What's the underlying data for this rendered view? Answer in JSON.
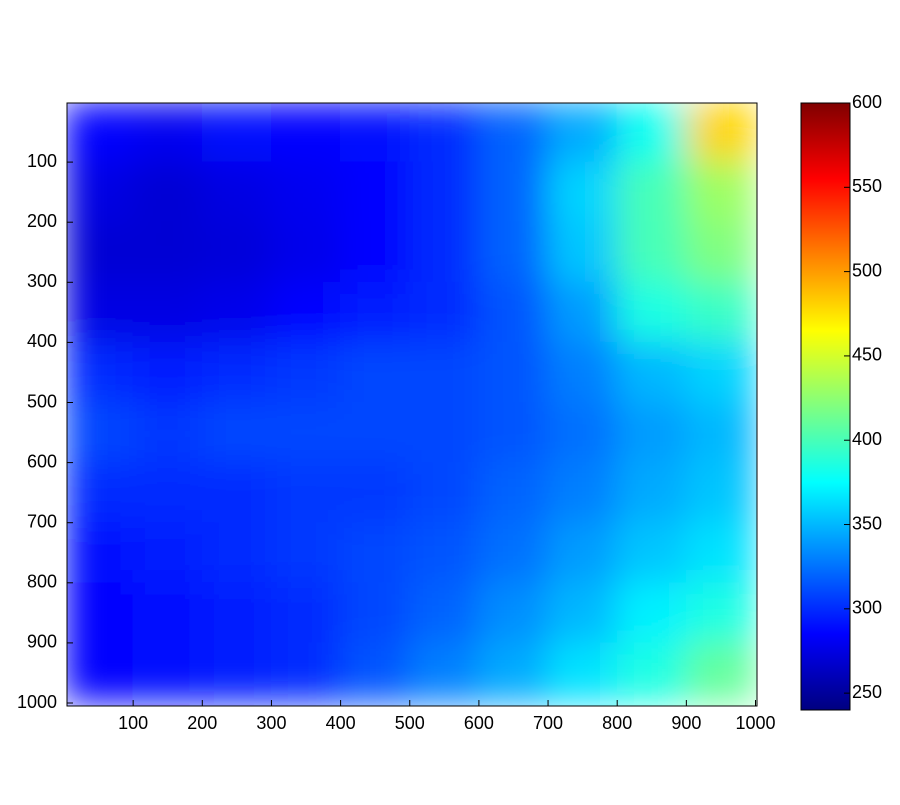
{
  "chart_data": {
    "type": "heatmap",
    "colormap": "jet",
    "y_reversed": true,
    "x": [
      50,
      150,
      250,
      350,
      450,
      550,
      650,
      750,
      850,
      950
    ],
    "y": [
      50,
      150,
      250,
      350,
      450,
      550,
      650,
      750,
      850,
      950
    ],
    "z": [
      [
        285,
        280,
        290,
        285,
        290,
        300,
        320,
        345,
        380,
        480
      ],
      [
        275,
        270,
        275,
        280,
        285,
        300,
        320,
        360,
        400,
        430
      ],
      [
        270,
        270,
        272,
        278,
        285,
        300,
        320,
        355,
        400,
        420
      ],
      [
        275,
        275,
        278,
        285,
        295,
        300,
        315,
        340,
        385,
        395
      ],
      [
        300,
        295,
        300,
        305,
        310,
        310,
        315,
        330,
        350,
        360
      ],
      [
        310,
        305,
        310,
        310,
        310,
        310,
        315,
        325,
        340,
        350
      ],
      [
        300,
        300,
        300,
        305,
        305,
        310,
        320,
        330,
        345,
        355
      ],
      [
        290,
        295,
        300,
        305,
        310,
        315,
        325,
        340,
        355,
        365
      ],
      [
        285,
        290,
        295,
        300,
        310,
        320,
        335,
        350,
        370,
        385
      ],
      [
        285,
        290,
        295,
        300,
        315,
        330,
        345,
        365,
        385,
        410
      ]
    ],
    "xlim": [
      0,
      1000
    ],
    "ylim": [
      0,
      1000
    ],
    "xticks": [
      100,
      200,
      300,
      400,
      500,
      600,
      700,
      800,
      900,
      1000
    ],
    "yticks": [
      100,
      200,
      300,
      400,
      500,
      600,
      700,
      800,
      900,
      1000
    ],
    "clim": [
      240,
      600
    ],
    "cticks": [
      250,
      300,
      350,
      400,
      450,
      500,
      550,
      600
    ]
  }
}
